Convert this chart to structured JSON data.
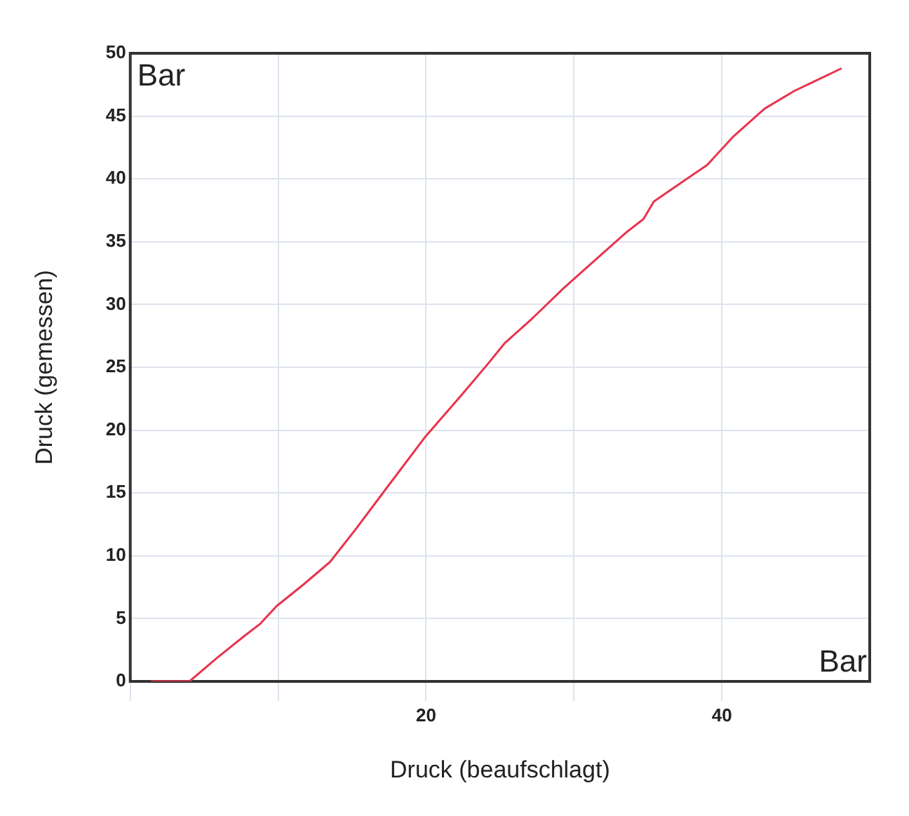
{
  "chart_data": {
    "type": "line",
    "xlabel": "Druck (beaufschlagt)",
    "ylabel": "Druck (gemessen)",
    "annotations": [
      "Bar",
      "Bar"
    ],
    "x": [
      1.4,
      4.0,
      5.9,
      7.7,
      8.8,
      9.9,
      11.7,
      13.5,
      15.3,
      17.4,
      19.9,
      22.4,
      24.2,
      25.3,
      27.1,
      29.3,
      31.4,
      33.6,
      34.7,
      35.4,
      37.5,
      39,
      40.8,
      42.9,
      44.9,
      46.5,
      48.1
    ],
    "series": [
      {
        "color": "#e8344e",
        "values": [
          0,
          0,
          1.9,
          3.6,
          4.6,
          6.0,
          7.7,
          9.5,
          12.2,
          15.5,
          19.4,
          22.8,
          25.3,
          26.9,
          28.8,
          31.3,
          33.5,
          35.8,
          36.8,
          38.2,
          39.9,
          41.1,
          43.4,
          45.6,
          47.0,
          47.9,
          48.8
        ]
      }
    ],
    "xlim": [
      0,
      50
    ],
    "xticks": [
      {
        "value": 0,
        "label": null
      },
      {
        "value": 10,
        "label": null
      },
      20,
      {
        "value": 30,
        "label": null
      },
      40
    ],
    "ylim": [
      0,
      50
    ],
    "yticks": [
      0,
      5,
      10,
      15,
      20,
      25,
      30,
      35,
      40,
      45,
      50
    ],
    "grid": true,
    "legend": false,
    "marker": "none",
    "line_style": "solid"
  }
}
